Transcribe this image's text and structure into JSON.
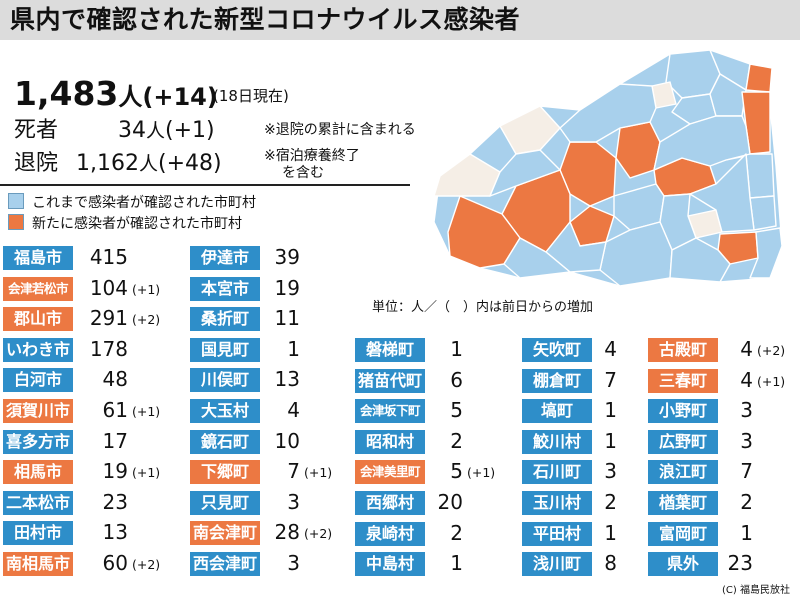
{
  "title": "県内で確認された新型コロナウイルス感染者",
  "summary": {
    "total_value": "1,483",
    "total_unit": "人",
    "total_delta": "(+14)",
    "as_of": "(18日現在)",
    "deaths_label": "死者",
    "deaths_value": "34",
    "deaths_unit": "人",
    "deaths_delta": "(+1)",
    "deaths_note": "※退院の累計に含まれる",
    "recovered_label": "退院",
    "recovered_value": "1,162",
    "recovered_unit": "人",
    "recovered_delta": "(+48)",
    "recovered_note_line1": "※宿泊療養終了",
    "recovered_note_line2": "を含む"
  },
  "legend": {
    "existing_label": "これまで感染者が確認された市町村",
    "existing_color": "#a8d0ec",
    "new_label": "新たに感染者が確認された市町村",
    "new_color": "#ec7842"
  },
  "unit_note": "単位：人／（　）内は前日からの増加",
  "colors": {
    "label_existing": "#2e8ec9",
    "label_new": "#ec7842",
    "map_none": "#f5eee6",
    "map_border": "#ffffff"
  },
  "columns": [
    [
      {
        "name": "福島市",
        "count": "415",
        "delta": "",
        "is_new": false
      },
      {
        "name": "会津若松市",
        "count": "104",
        "delta": "(+1)",
        "is_new": true
      },
      {
        "name": "郡山市",
        "count": "291",
        "delta": "(+2)",
        "is_new": true
      },
      {
        "name": "いわき市",
        "count": "178",
        "delta": "",
        "is_new": false
      },
      {
        "name": "白河市",
        "count": "48",
        "delta": "",
        "is_new": false
      },
      {
        "name": "須賀川市",
        "count": "61",
        "delta": "(+1)",
        "is_new": true
      },
      {
        "name": "喜多方市",
        "count": "17",
        "delta": "",
        "is_new": false
      },
      {
        "name": "相馬市",
        "count": "19",
        "delta": "(+1)",
        "is_new": true
      },
      {
        "name": "二本松市",
        "count": "23",
        "delta": "",
        "is_new": false
      },
      {
        "name": "田村市",
        "count": "13",
        "delta": "",
        "is_new": false
      },
      {
        "name": "南相馬市",
        "count": "60",
        "delta": "(+2)",
        "is_new": true
      }
    ],
    [
      {
        "name": "伊達市",
        "count": "39",
        "delta": "",
        "is_new": false
      },
      {
        "name": "本宮市",
        "count": "19",
        "delta": "",
        "is_new": false
      },
      {
        "name": "桑折町",
        "count": "11",
        "delta": "",
        "is_new": false
      },
      {
        "name": "国見町",
        "count": "1",
        "delta": "",
        "is_new": false
      },
      {
        "name": "川俣町",
        "count": "13",
        "delta": "",
        "is_new": false
      },
      {
        "name": "大玉村",
        "count": "4",
        "delta": "",
        "is_new": false
      },
      {
        "name": "鏡石町",
        "count": "10",
        "delta": "",
        "is_new": false
      },
      {
        "name": "下郷町",
        "count": "7",
        "delta": "(+1)",
        "is_new": true
      },
      {
        "name": "只見町",
        "count": "3",
        "delta": "",
        "is_new": false
      },
      {
        "name": "南会津町",
        "count": "28",
        "delta": "(+2)",
        "is_new": true
      },
      {
        "name": "西会津町",
        "count": "3",
        "delta": "",
        "is_new": false
      }
    ],
    [
      {
        "name": "磐梯町",
        "count": "1",
        "delta": "",
        "is_new": false
      },
      {
        "name": "猪苗代町",
        "count": "6",
        "delta": "",
        "is_new": false
      },
      {
        "name": "会津坂下町",
        "count": "5",
        "delta": "",
        "is_new": false
      },
      {
        "name": "昭和村",
        "count": "2",
        "delta": "",
        "is_new": false
      },
      {
        "name": "会津美里町",
        "count": "5",
        "delta": "(+1)",
        "is_new": true
      },
      {
        "name": "西郷村",
        "count": "20",
        "delta": "",
        "is_new": false
      },
      {
        "name": "泉崎村",
        "count": "2",
        "delta": "",
        "is_new": false
      },
      {
        "name": "中島村",
        "count": "1",
        "delta": "",
        "is_new": false
      }
    ],
    [
      {
        "name": "矢吹町",
        "count": "4",
        "delta": "",
        "is_new": false
      },
      {
        "name": "棚倉町",
        "count": "7",
        "delta": "",
        "is_new": false
      },
      {
        "name": "塙町",
        "count": "1",
        "delta": "",
        "is_new": false
      },
      {
        "name": "鮫川村",
        "count": "1",
        "delta": "",
        "is_new": false
      },
      {
        "name": "石川町",
        "count": "3",
        "delta": "",
        "is_new": false
      },
      {
        "name": "玉川村",
        "count": "2",
        "delta": "",
        "is_new": false
      },
      {
        "name": "平田村",
        "count": "1",
        "delta": "",
        "is_new": false
      },
      {
        "name": "浅川町",
        "count": "8",
        "delta": "",
        "is_new": false
      }
    ],
    [
      {
        "name": "古殿町",
        "count": "4",
        "delta": "(+2)",
        "is_new": true
      },
      {
        "name": "三春町",
        "count": "4",
        "delta": "(+1)",
        "is_new": true
      },
      {
        "name": "小野町",
        "count": "3",
        "delta": "",
        "is_new": false
      },
      {
        "name": "広野町",
        "count": "3",
        "delta": "",
        "is_new": false
      },
      {
        "name": "浪江町",
        "count": "7",
        "delta": "",
        "is_new": false
      },
      {
        "name": "楢葉町",
        "count": "2",
        "delta": "",
        "is_new": false
      },
      {
        "name": "富岡町",
        "count": "1",
        "delta": "",
        "is_new": false
      },
      {
        "name": "県外",
        "count": "23",
        "delta": "",
        "is_new": false
      }
    ]
  ],
  "copyright": "(C) 福島民放社"
}
